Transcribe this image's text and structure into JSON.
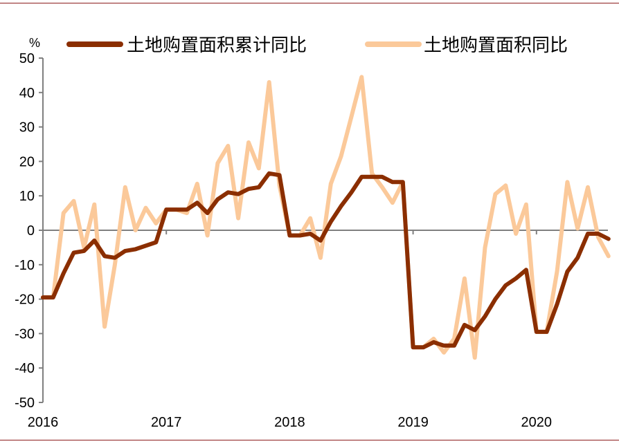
{
  "colors": {
    "frame": "#8b1a1a",
    "axis": "#7f7f7f",
    "cumulative": "#8b2e00",
    "monthly": "#fbc99a"
  },
  "chart_data": {
    "type": "line",
    "ylabel": "%",
    "ylim": [
      -50,
      50
    ],
    "yticks": [
      50,
      40,
      30,
      20,
      10,
      0,
      -10,
      -20,
      -30,
      -40,
      -50
    ],
    "year_labels": [
      "2016",
      "2017",
      "2018",
      "2019",
      "2020"
    ],
    "legend": {
      "placement": "top"
    },
    "series": [
      {
        "name": "土地购置面积累计同比",
        "color": "#8b2e00",
        "values": [
          -19.5,
          -19.5,
          -12.5,
          -6.5,
          -6,
          -3,
          -7.5,
          -8,
          -6,
          -5.5,
          -4.5,
          -3.5,
          6,
          6,
          6,
          8,
          5,
          9,
          11,
          10.5,
          12,
          12.5,
          16.5,
          16,
          -1.5,
          -1.5,
          -1,
          -3,
          2.5,
          7,
          11,
          15.5,
          15.5,
          15.5,
          14,
          14,
          -34,
          -34,
          -32.5,
          -33.5,
          -33.5,
          -27.5,
          -29,
          -25,
          -20,
          -16,
          -14,
          -11.5,
          -29.5,
          -29.5,
          -21.5,
          -12,
          -8,
          -1,
          -1,
          -2.5
        ]
      },
      {
        "name": "土地购置面积同比",
        "color": "#fbc99a",
        "values": [
          -19.5,
          -19.5,
          5,
          8.5,
          -5,
          7.5,
          -28,
          -10,
          12.5,
          0,
          6.5,
          2,
          6,
          6,
          5,
          13.5,
          -1.5,
          19.5,
          24.5,
          3.5,
          25.5,
          18,
          43,
          13,
          -1.5,
          -1.5,
          3.5,
          -8,
          13.5,
          21.5,
          33,
          44.5,
          16.5,
          12.5,
          8,
          14,
          -34,
          -34,
          -31.5,
          -35.5,
          -31.5,
          -14,
          -37,
          -5,
          10.5,
          13,
          -1,
          7.5,
          -29.5,
          -29.5,
          -12,
          14,
          0.5,
          12.5,
          -2,
          -7.5
        ]
      }
    ]
  }
}
